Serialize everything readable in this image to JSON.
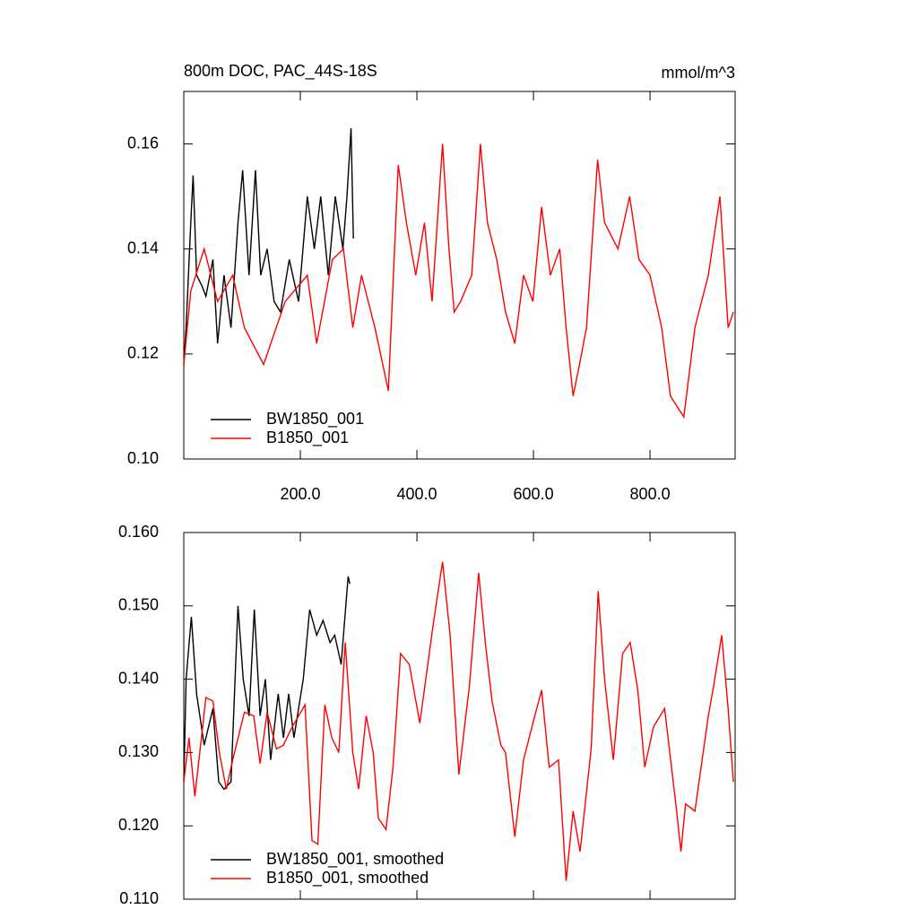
{
  "chart_data": [
    {
      "type": "line",
      "title": "800m DOC, PAC_44S-18S",
      "units": "mmol/m^3",
      "xlim": [
        0,
        946
      ],
      "ylim": [
        0.1,
        0.17
      ],
      "xticks": [
        {
          "value": 200,
          "label": "200.0"
        },
        {
          "value": 400,
          "label": "400.0"
        },
        {
          "value": 600,
          "label": "600.0"
        },
        {
          "value": 800,
          "label": "800.0"
        }
      ],
      "yticks": [
        {
          "value": 0.1,
          "label": "0.10"
        },
        0.12,
        0.14,
        0.16
      ],
      "show_xtick_labels": true,
      "legend": "lower left",
      "series": [
        {
          "name": "BW1850_001",
          "color": "#000000",
          "x": [
            0,
            4,
            12,
            16,
            22,
            31,
            38,
            50,
            58,
            69,
            81,
            93,
            101,
            112,
            123,
            132,
            143,
            155,
            166,
            181,
            197,
            212,
            224,
            235,
            248,
            260,
            273,
            280,
            287,
            291
          ],
          "values": [
            0.118,
            0.125,
            0.145,
            0.154,
            0.135,
            0.133,
            0.131,
            0.138,
            0.122,
            0.135,
            0.125,
            0.145,
            0.155,
            0.135,
            0.155,
            0.135,
            0.14,
            0.13,
            0.128,
            0.138,
            0.13,
            0.15,
            0.14,
            0.15,
            0.135,
            0.15,
            0.14,
            0.15,
            0.163,
            0.142
          ]
        },
        {
          "name": "B1850_001",
          "color": "#ff0000",
          "x": [
            0,
            12,
            35,
            58,
            84,
            104,
            137,
            174,
            212,
            228,
            255,
            274,
            290,
            305,
            328,
            351,
            368,
            382,
            398,
            413,
            426,
            444,
            455,
            464,
            475,
            494,
            509,
            521,
            537,
            552,
            568,
            583,
            599,
            614,
            629,
            645,
            656,
            668,
            679,
            691,
            710,
            722,
            745,
            765,
            781,
            800,
            820,
            835,
            858,
            877,
            900,
            920,
            934,
            943
          ],
          "values": [
            0.118,
            0.132,
            0.14,
            0.13,
            0.135,
            0.125,
            0.118,
            0.13,
            0.135,
            0.122,
            0.138,
            0.14,
            0.125,
            0.135,
            0.125,
            0.113,
            0.156,
            0.145,
            0.135,
            0.145,
            0.13,
            0.16,
            0.14,
            0.128,
            0.13,
            0.135,
            0.16,
            0.145,
            0.138,
            0.128,
            0.122,
            0.135,
            0.13,
            0.148,
            0.135,
            0.14,
            0.125,
            0.112,
            0.118,
            0.125,
            0.157,
            0.145,
            0.14,
            0.15,
            0.138,
            0.135,
            0.125,
            0.112,
            0.108,
            0.125,
            0.135,
            0.15,
            0.125,
            0.128
          ]
        }
      ]
    },
    {
      "type": "line",
      "xlim": [
        0,
        946
      ],
      "ylim": [
        0.11,
        0.16
      ],
      "xticks": [
        200,
        400,
        600,
        800
      ],
      "yticks": [
        {
          "value": 0.11,
          "label": "0.110"
        },
        {
          "value": 0.12,
          "label": "0.120"
        },
        {
          "value": 0.13,
          "label": "0.130"
        },
        {
          "value": 0.14,
          "label": "0.140"
        },
        {
          "value": 0.15,
          "label": "0.150"
        },
        {
          "value": 0.16,
          "label": "0.160"
        }
      ],
      "show_xtick_labels": false,
      "legend": "lower left",
      "series": [
        {
          "name": "BW1850_001, smoothed",
          "color": "#000000",
          "x": [
            0,
            4,
            13,
            22,
            35,
            50,
            60,
            69,
            81,
            93,
            102,
            112,
            121,
            131,
            140,
            149,
            162,
            171,
            180,
            189,
            205,
            216,
            228,
            239,
            251,
            259,
            270,
            282,
            285
          ],
          "values": [
            0.126,
            0.14,
            0.1485,
            0.138,
            0.131,
            0.136,
            0.126,
            0.125,
            0.126,
            0.15,
            0.14,
            0.135,
            0.1495,
            0.135,
            0.14,
            0.129,
            0.138,
            0.132,
            0.138,
            0.132,
            0.14,
            0.1495,
            0.146,
            0.148,
            0.145,
            0.146,
            0.142,
            0.154,
            0.153
          ]
        },
        {
          "name": "B1850_001, smoothed",
          "color": "#ff0000",
          "x": [
            0,
            9,
            19,
            38,
            50,
            61,
            73,
            84,
            104,
            120,
            131,
            143,
            159,
            171,
            186,
            208,
            220,
            230,
            242,
            254,
            266,
            277,
            290,
            300,
            313,
            325,
            334,
            347,
            359,
            372,
            387,
            405,
            428,
            444,
            457,
            472,
            490,
            506,
            518,
            529,
            544,
            552,
            568,
            583,
            599,
            614,
            627,
            643,
            656,
            668,
            680,
            699,
            711,
            722,
            737,
            753,
            766,
            779,
            791,
            806,
            825,
            845,
            853,
            861,
            877,
            900,
            909,
            923,
            934,
            943
          ],
          "values": [
            0.126,
            0.132,
            0.124,
            0.1375,
            0.137,
            0.13,
            0.125,
            0.129,
            0.1355,
            0.135,
            0.1285,
            0.1355,
            0.1305,
            0.131,
            0.1335,
            0.1365,
            0.118,
            0.1175,
            0.1365,
            0.132,
            0.13,
            0.145,
            0.13,
            0.125,
            0.135,
            0.13,
            0.121,
            0.1195,
            0.128,
            0.1435,
            0.142,
            0.134,
            0.1475,
            0.156,
            0.146,
            0.127,
            0.139,
            0.1545,
            0.1445,
            0.137,
            0.131,
            0.13,
            0.1185,
            0.129,
            0.134,
            0.1385,
            0.128,
            0.129,
            0.1125,
            0.122,
            0.1165,
            0.1305,
            0.152,
            0.14,
            0.129,
            0.1435,
            0.145,
            0.1385,
            0.128,
            0.1335,
            0.136,
            0.1225,
            0.1165,
            0.123,
            0.122,
            0.135,
            0.139,
            0.146,
            0.136,
            0.126
          ]
        }
      ]
    }
  ]
}
